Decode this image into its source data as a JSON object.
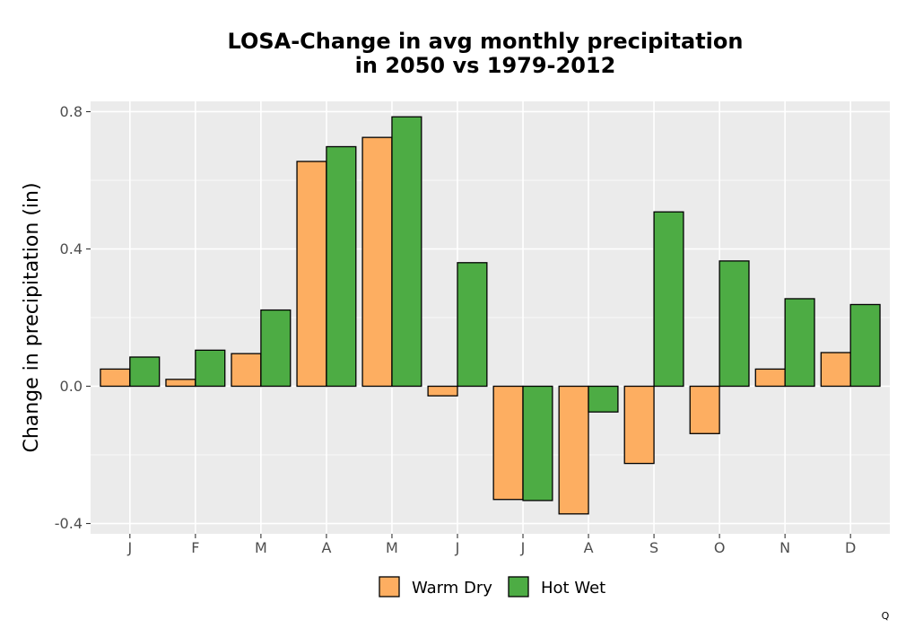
{
  "chart_data": {
    "type": "bar",
    "title": [
      "LOSA-Change in avg monthly precipitation",
      "in 2050 vs 1979-2012"
    ],
    "xlabel": "",
    "ylabel": "Change in precipitation (in)",
    "categories": [
      "J",
      "F",
      "M",
      "A",
      "M",
      "J",
      "J",
      "A",
      "S",
      "O",
      "N",
      "D"
    ],
    "ylim": [
      -0.43,
      0.83
    ],
    "yticks": [
      -0.4,
      0.0,
      0.4,
      0.8
    ],
    "ytick_labels": [
      "-0.4",
      "0.0",
      "0.4",
      "0.8"
    ],
    "grid": true,
    "legend_position": "bottom",
    "series": [
      {
        "name": "Warm Dry",
        "color": "#FDAE61",
        "values": [
          0.05,
          0.02,
          0.095,
          0.655,
          0.725,
          -0.028,
          -0.33,
          -0.372,
          -0.225,
          -0.138,
          0.05,
          0.098
        ]
      },
      {
        "name": "Hot Wet",
        "color": "#4DAC44",
        "values": [
          0.085,
          0.105,
          0.222,
          0.698,
          0.785,
          0.36,
          -0.333,
          -0.075,
          0.508,
          0.365,
          0.255,
          0.238
        ]
      }
    ],
    "colors": {
      "panel_background": "#EBEBEB",
      "grid": "#FFFFFF",
      "bar_outline": "#000000"
    }
  },
  "corner_text": "Q"
}
